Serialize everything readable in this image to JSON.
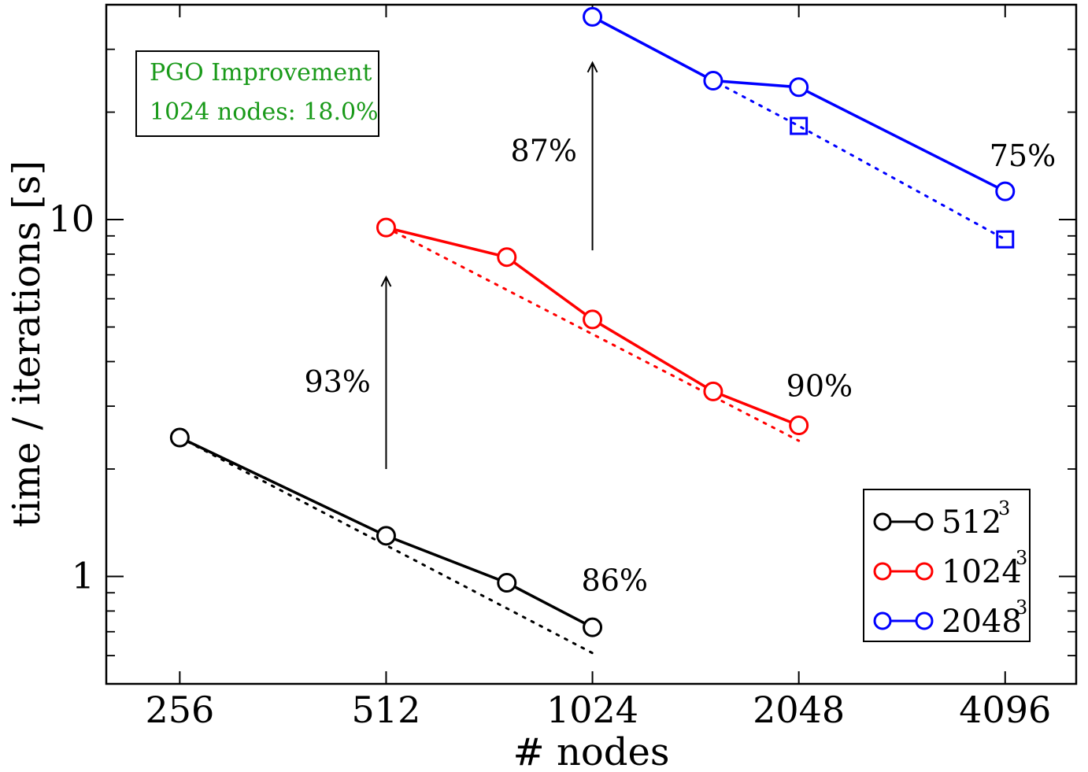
{
  "chart_data": {
    "type": "line",
    "title": "",
    "xlabel": "# nodes",
    "ylabel": "time / iterations [s]",
    "xscale": "log2",
    "yscale": "log10",
    "xlim": [
      200,
      5200
    ],
    "ylim": [
      0.5,
      40
    ],
    "x_ticks": [
      256,
      512,
      1024,
      2048,
      4096
    ],
    "x_tick_labels": [
      "256",
      "512",
      "1024",
      "2048",
      "4096"
    ],
    "y_ticks": [
      1,
      10
    ],
    "y_tick_labels": [
      "1",
      "10"
    ],
    "series": [
      {
        "name": "512",
        "name_sup": "3",
        "color": "#000000",
        "x": [
          256,
          512,
          768,
          1024
        ],
        "values": [
          2.45,
          1.3,
          0.96,
          0.72
        ],
        "ideal": {
          "x": [
            256,
            1024
          ],
          "values": [
            2.45,
            0.61
          ]
        }
      },
      {
        "name": "1024",
        "name_sup": "3",
        "color": "#ff0000",
        "x": [
          512,
          768,
          1024,
          1536,
          2048
        ],
        "values": [
          9.5,
          7.85,
          5.25,
          3.3,
          2.65
        ],
        "ideal": {
          "x": [
            512,
            2048
          ],
          "values": [
            9.5,
            2.4
          ]
        }
      },
      {
        "name": "2048",
        "name_sup": "3",
        "color": "#0000ff",
        "x": [
          1024,
          1536,
          2048,
          4096
        ],
        "values": [
          37,
          24.5,
          23.5,
          12
        ],
        "ideal": {
          "x": [
            1024,
            1536,
            2048,
            4096
          ],
          "values": [
            37,
            24.5,
            18.3,
            8.8
          ],
          "square_markers_at": [
            2048,
            4096
          ]
        }
      }
    ],
    "annotations": [
      {
        "text": "86%",
        "x": 1024,
        "y": 0.97
      },
      {
        "text": "93%",
        "x": 512,
        "y": 3.5
      },
      {
        "text": "87%",
        "x": 1024,
        "y": 15.5
      },
      {
        "text": "90%",
        "x": 2048,
        "y": 3.4
      },
      {
        "text": "75%",
        "x": 4096,
        "y": 15.0
      }
    ],
    "arrows": [
      {
        "x": 512,
        "from": 2.0,
        "to": 6.9
      },
      {
        "x": 1024,
        "from": 8.2,
        "to": 27.5
      }
    ],
    "info_box": {
      "line1": "PGO  Improvement",
      "line2": "1024 nodes: 18.0%"
    },
    "legend_position": "bottom-right"
  }
}
